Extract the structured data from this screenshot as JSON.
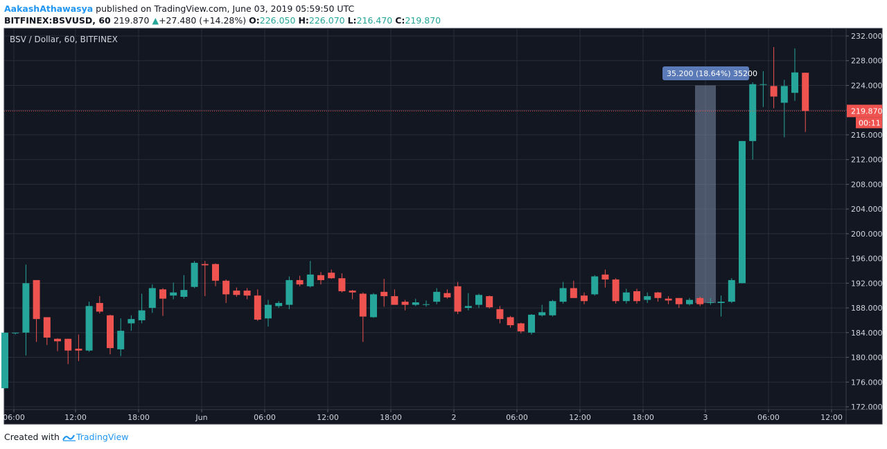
{
  "header": {
    "author": "AakashAthawasya",
    "published_text": "published on TradingView.com, June 03, 2019 05:59:50 UTC",
    "symbol": "BITFINEX:BSVUSD, 60",
    "last": "219.870",
    "arrow": "▲",
    "change": "+27.480 (+14.28%)",
    "o_label": "O:",
    "o_value": "226.050",
    "h_label": "H:",
    "h_value": "226.070",
    "l_label": "L:",
    "l_value": "216.470",
    "c_label": "C:",
    "c_value": "219.870"
  },
  "chart_title": "BSV / Dollar, 60, BITFINEX",
  "price_label": "219.870",
  "countdown_label": "00:11",
  "measure_label": "35.200 (18.64%) 35200",
  "footer": {
    "created": "Created with",
    "brand": "TradingView"
  },
  "colors": {
    "background": "#131722",
    "grid": "#2a2e39",
    "up": "#26a69a",
    "down": "#ef5350",
    "axis_text": "#d1d4dc",
    "measure": "#5b7ab8"
  },
  "chart_data": {
    "type": "candlestick",
    "title": "BSV / Dollar, 60, BITFINEX",
    "ylim": [
      172,
      233
    ],
    "y_ticks": [
      "232.000",
      "228.000",
      "224.000",
      "220.000",
      "216.000",
      "212.000",
      "208.000",
      "204.000",
      "200.000",
      "196.000",
      "192.000",
      "188.000",
      "184.000",
      "180.000",
      "176.000",
      "172.000"
    ],
    "x_ticks": [
      "06:00",
      "12:00",
      "18:00",
      "Jun",
      "06:00",
      "12:00",
      "18:00",
      "2",
      "06:00",
      "12:00",
      "18:00",
      "3",
      "06:00",
      "12:00"
    ],
    "last_price": 219.87,
    "measure": {
      "from": 188.8,
      "to": 224.0,
      "change": 35.2,
      "percent": 18.64
    },
    "candles": [
      {
        "o": 175,
        "h": 184,
        "l": 175,
        "c": 184
      },
      {
        "o": 184,
        "h": 184,
        "l": 183.7,
        "c": 184
      },
      {
        "o": 184,
        "h": 195,
        "l": 180.3,
        "c": 192
      },
      {
        "o": 192.5,
        "h": 192.5,
        "l": 182.5,
        "c": 186.2
      },
      {
        "o": 186.5,
        "h": 186.5,
        "l": 182,
        "c": 183.2
      },
      {
        "o": 183,
        "h": 183.1,
        "l": 181,
        "c": 182.6
      },
      {
        "o": 183,
        "h": 183,
        "l": 178.9,
        "c": 181.1
      },
      {
        "o": 181.4,
        "h": 183.7,
        "l": 179.4,
        "c": 181.1
      },
      {
        "o": 181.1,
        "h": 189,
        "l": 180.9,
        "c": 188.3
      },
      {
        "o": 188.8,
        "h": 189.9,
        "l": 187.1,
        "c": 187.4
      },
      {
        "o": 186.8,
        "h": 186.9,
        "l": 180.5,
        "c": 181.5
      },
      {
        "o": 181.3,
        "h": 186.3,
        "l": 180.2,
        "c": 184.3
      },
      {
        "o": 185.5,
        "h": 186.8,
        "l": 184.3,
        "c": 186.2
      },
      {
        "o": 186,
        "h": 190.3,
        "l": 185.5,
        "c": 187.6
      },
      {
        "o": 188,
        "h": 191.8,
        "l": 187.2,
        "c": 191.2
      },
      {
        "o": 191,
        "h": 191.2,
        "l": 186.7,
        "c": 189.5
      },
      {
        "o": 190,
        "h": 192.1,
        "l": 189.4,
        "c": 190.5
      },
      {
        "o": 189.8,
        "h": 193.3,
        "l": 189.5,
        "c": 190.9
      },
      {
        "o": 191.4,
        "h": 195.6,
        "l": 191.2,
        "c": 195.3
      },
      {
        "o": 195.1,
        "h": 195.6,
        "l": 189.9,
        "c": 194.9
      },
      {
        "o": 195.1,
        "h": 195.2,
        "l": 191.5,
        "c": 192.4
      },
      {
        "o": 192.4,
        "h": 192.6,
        "l": 188.8,
        "c": 190.2
      },
      {
        "o": 190.8,
        "h": 191.3,
        "l": 189.8,
        "c": 190.1
      },
      {
        "o": 190.8,
        "h": 191.2,
        "l": 189.4,
        "c": 190
      },
      {
        "o": 190,
        "h": 191,
        "l": 185.9,
        "c": 186.1
      },
      {
        "o": 186.3,
        "h": 189.3,
        "l": 185,
        "c": 188.5
      },
      {
        "o": 188.3,
        "h": 189.1,
        "l": 188,
        "c": 188.8
      },
      {
        "o": 188.5,
        "h": 193.1,
        "l": 187.8,
        "c": 192.5
      },
      {
        "o": 192.5,
        "h": 193.2,
        "l": 191.5,
        "c": 191.8
      },
      {
        "o": 191.5,
        "h": 195.6,
        "l": 191.3,
        "c": 193.4
      },
      {
        "o": 193.3,
        "h": 193.8,
        "l": 191.8,
        "c": 192.5
      },
      {
        "o": 193.7,
        "h": 194.2,
        "l": 192.7,
        "c": 192.8
      },
      {
        "o": 192.8,
        "h": 193.6,
        "l": 190.5,
        "c": 190.7
      },
      {
        "o": 190.8,
        "h": 190.9,
        "l": 189.4,
        "c": 190.5
      },
      {
        "o": 190.3,
        "h": 190.5,
        "l": 182.5,
        "c": 186.6
      },
      {
        "o": 186.5,
        "h": 190.4,
        "l": 186.4,
        "c": 190.2
      },
      {
        "o": 190.6,
        "h": 192.7,
        "l": 188.2,
        "c": 189.9
      },
      {
        "o": 189.9,
        "h": 191,
        "l": 188.5,
        "c": 188.5
      },
      {
        "o": 189,
        "h": 189.3,
        "l": 187.6,
        "c": 188.5
      },
      {
        "o": 188.5,
        "h": 189.5,
        "l": 188.3,
        "c": 188.9
      },
      {
        "o": 188.5,
        "h": 189.2,
        "l": 188.2,
        "c": 188.6
      },
      {
        "o": 189,
        "h": 191.2,
        "l": 188.6,
        "c": 190.6
      },
      {
        "o": 190.4,
        "h": 191,
        "l": 189.5,
        "c": 189.7
      },
      {
        "o": 191.5,
        "h": 192.2,
        "l": 187,
        "c": 187.4
      },
      {
        "o": 188,
        "h": 190.4,
        "l": 187.6,
        "c": 188.3
      },
      {
        "o": 188.5,
        "h": 190.3,
        "l": 188,
        "c": 190.1
      },
      {
        "o": 189.9,
        "h": 190,
        "l": 187.9,
        "c": 188.1
      },
      {
        "o": 187.8,
        "h": 188.3,
        "l": 185.5,
        "c": 186.2
      },
      {
        "o": 186.5,
        "h": 186.7,
        "l": 184.8,
        "c": 185.2
      },
      {
        "o": 185.5,
        "h": 185.6,
        "l": 183.9,
        "c": 184.2
      },
      {
        "o": 184,
        "h": 187,
        "l": 183.7,
        "c": 186.9
      },
      {
        "o": 186.8,
        "h": 188.5,
        "l": 186.6,
        "c": 187.3
      },
      {
        "o": 186.8,
        "h": 189.3,
        "l": 186.6,
        "c": 189.1
      },
      {
        "o": 189,
        "h": 192.2,
        "l": 188.7,
        "c": 191.2
      },
      {
        "o": 191.2,
        "h": 192.4,
        "l": 189.7,
        "c": 189.6
      },
      {
        "o": 190,
        "h": 190.5,
        "l": 188.6,
        "c": 189.1
      },
      {
        "o": 190.2,
        "h": 193.3,
        "l": 190,
        "c": 193.1
      },
      {
        "o": 193.4,
        "h": 194.2,
        "l": 191.3,
        "c": 192.6
      },
      {
        "o": 192.6,
        "h": 192.8,
        "l": 188.7,
        "c": 189.1
      },
      {
        "o": 189.1,
        "h": 191.1,
        "l": 188.7,
        "c": 190.5
      },
      {
        "o": 190.7,
        "h": 191.1,
        "l": 188.7,
        "c": 189.1
      },
      {
        "o": 189.3,
        "h": 190.5,
        "l": 188.8,
        "c": 189.9
      },
      {
        "o": 190.5,
        "h": 190.6,
        "l": 189,
        "c": 189.6
      },
      {
        "o": 189.5,
        "h": 189.9,
        "l": 188.6,
        "c": 189.2
      },
      {
        "o": 189.6,
        "h": 189.6,
        "l": 188,
        "c": 188.6
      },
      {
        "o": 188.6,
        "h": 189.6,
        "l": 188.4,
        "c": 189.3
      },
      {
        "o": 189.6,
        "h": 189.8,
        "l": 188.3,
        "c": 188.6
      },
      {
        "o": 188.8,
        "h": 189.6,
        "l": 188.5,
        "c": 188.9
      },
      {
        "o": 188.8,
        "h": 190,
        "l": 186.6,
        "c": 189
      },
      {
        "o": 189,
        "h": 192.8,
        "l": 188.8,
        "c": 192.5
      },
      {
        "o": 192,
        "h": 215,
        "l": 192,
        "c": 215
      },
      {
        "o": 215,
        "h": 224.5,
        "l": 212,
        "c": 224.2
      },
      {
        "o": 224.1,
        "h": 226.3,
        "l": 220.5,
        "c": 224.2
      },
      {
        "o": 223.9,
        "h": 230.2,
        "l": 220.3,
        "c": 222.2
      },
      {
        "o": 221.2,
        "h": 224.9,
        "l": 215.6,
        "c": 223.9
      },
      {
        "o": 222.8,
        "h": 230,
        "l": 221.5,
        "c": 226.1
      },
      {
        "o": 226.05,
        "h": 226.07,
        "l": 216.47,
        "c": 219.87
      }
    ]
  }
}
